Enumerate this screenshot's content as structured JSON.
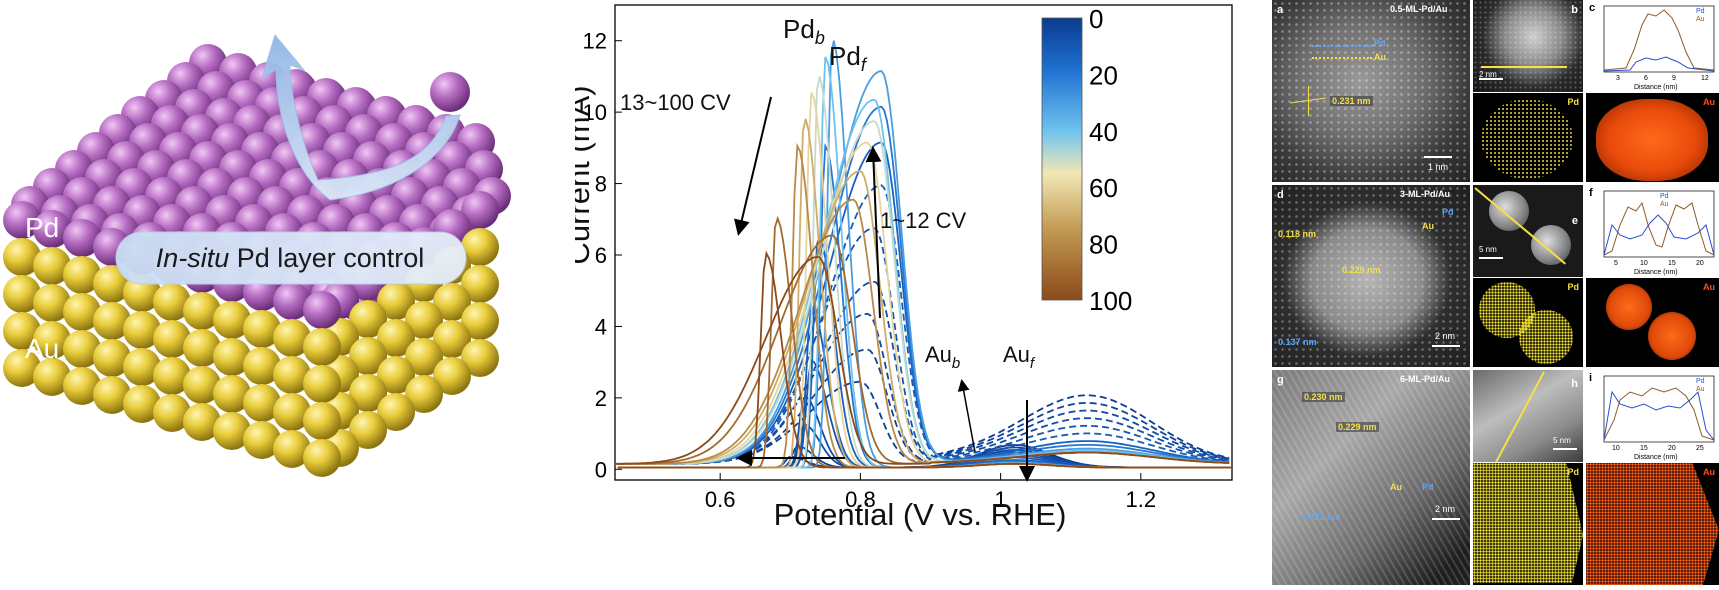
{
  "illustration": {
    "pd_label": "Pd",
    "au_label": "Au",
    "caption_italic": "In-situ",
    "caption_rest": " Pd layer control",
    "colors": {
      "pd": "#b86fc4",
      "au": "#e8cc3a",
      "arrow": "#a9c8ea"
    }
  },
  "chart_data": {
    "type": "line",
    "xlabel": "Potential (V vs. RHE)",
    "ylabel": "Current (mA)",
    "xlim": [
      0.45,
      1.33
    ],
    "ylim": [
      -0.3,
      13
    ],
    "xticks": [
      0.6,
      0.8,
      1.0,
      1.2
    ],
    "xtick_labels": [
      "0.6",
      "0.8",
      "1",
      "1.2"
    ],
    "yticks": [
      0,
      2,
      4,
      6,
      8,
      10,
      12
    ],
    "annotations": {
      "pd_b": "Pd",
      "pd_b_sub": "b",
      "pd_f": "Pd",
      "pd_f_sub": "f",
      "au_b": "Au",
      "au_b_sub": "b",
      "au_f": "Au",
      "au_f_sub": "f",
      "cv_late": "13~100 CV",
      "cv_early": "1~12 CV"
    },
    "colorbar": {
      "min": 0,
      "max": 100,
      "ticks": [
        "0",
        "20",
        "40",
        "60",
        "80",
        "100"
      ]
    },
    "series_params": [
      {
        "cycle": 1,
        "pdf_peak": 0.8,
        "pdf_h": 2.3,
        "pdb_peak": 0.7,
        "pdb_h": 0.3,
        "auf_h": 1.8
      },
      {
        "cycle": 3,
        "pdf_peak": 0.81,
        "pdf_h": 3.2,
        "pdb_peak": 0.71,
        "pdb_h": 0.6,
        "auf_h": 1.6
      },
      {
        "cycle": 5,
        "pdf_peak": 0.81,
        "pdf_h": 4.2,
        "pdb_peak": 0.72,
        "pdb_h": 1.2,
        "auf_h": 1.4
      },
      {
        "cycle": 7,
        "pdf_peak": 0.82,
        "pdf_h": 5.1,
        "pdb_peak": 0.72,
        "pdb_h": 2.0,
        "auf_h": 1.2
      },
      {
        "cycle": 9,
        "pdf_peak": 0.82,
        "pdf_h": 6.6,
        "pdb_peak": 0.73,
        "pdb_h": 3.0,
        "auf_h": 1.0
      },
      {
        "cycle": 11,
        "pdf_peak": 0.83,
        "pdf_h": 7.8,
        "pdb_peak": 0.73,
        "pdb_h": 4.5,
        "auf_h": 0.8
      },
      {
        "cycle": 13,
        "pdf_peak": 0.83,
        "pdf_h": 9.0,
        "pdb_peak": 0.74,
        "pdb_h": 6.5,
        "auf_h": 0.6
      },
      {
        "cycle": 20,
        "pdf_peak": 0.83,
        "pdf_h": 10.0,
        "pdb_peak": 0.75,
        "pdb_h": 9.0,
        "auf_h": 0.5
      },
      {
        "cycle": 30,
        "pdf_peak": 0.83,
        "pdf_h": 11.0,
        "pdb_peak": 0.76,
        "pdb_h": 12.0,
        "auf_h": 0.4
      },
      {
        "cycle": 40,
        "pdf_peak": 0.82,
        "pdf_h": 10.2,
        "pdb_peak": 0.75,
        "pdb_h": 11.5,
        "auf_h": 0.35
      },
      {
        "cycle": 50,
        "pdf_peak": 0.82,
        "pdf_h": 9.6,
        "pdb_peak": 0.74,
        "pdb_h": 11.0,
        "auf_h": 0.3
      },
      {
        "cycle": 60,
        "pdf_peak": 0.81,
        "pdf_h": 9.0,
        "pdb_peak": 0.73,
        "pdb_h": 10.5,
        "auf_h": 0.3
      },
      {
        "cycle": 70,
        "pdf_peak": 0.8,
        "pdf_h": 8.2,
        "pdb_peak": 0.72,
        "pdb_h": 9.8,
        "auf_h": 0.3
      },
      {
        "cycle": 80,
        "pdf_peak": 0.79,
        "pdf_h": 7.4,
        "pdb_peak": 0.71,
        "pdb_h": 9.0,
        "auf_h": 0.3
      },
      {
        "cycle": 90,
        "pdf_peak": 0.76,
        "pdf_h": 6.4,
        "pdb_peak": 0.68,
        "pdb_h": 7.0,
        "auf_h": 0.3
      },
      {
        "cycle": 100,
        "pdf_peak": 0.74,
        "pdf_h": 5.8,
        "pdb_peak": 0.665,
        "pdb_h": 6.0,
        "auf_h": 0.3
      }
    ]
  },
  "micrographs": {
    "row1": {
      "a_letter": "a",
      "b_letter": "b",
      "c_letter": "c",
      "title": "0.5-ML-Pd/Au",
      "pd_tag": "Pd",
      "au_tag": "Au",
      "spacing": "0.231 nm",
      "scale_main": "1 nm",
      "scale_small": "2 nm",
      "map_pd": "Pd",
      "map_au": "Au",
      "plot": {
        "xlabel": "Distance (nm)",
        "xticks": [
          "3",
          "6",
          "9",
          "12"
        ],
        "legend": [
          "Pd",
          "Au"
        ]
      }
    },
    "row2": {
      "d_letter": "d",
      "e_letter": "e",
      "f_letter": "f",
      "title": "3-ML-Pd/Au",
      "spacing_1": "0.118 nm",
      "spacing_2": "0.229 nm",
      "spacing_3": "0.137 nm",
      "pd_tag": "Pd",
      "au_tag": "Au",
      "scale_main": "2 nm",
      "scale_small": "5 nm",
      "map_pd": "Pd",
      "map_au": "Au",
      "plot": {
        "xlabel": "Distance (nm)",
        "xticks": [
          "5",
          "10",
          "15",
          "20"
        ],
        "legend": [
          "Pd",
          "Au"
        ]
      }
    },
    "row3": {
      "g_letter": "g",
      "h_letter": "h",
      "i_letter": "i",
      "title": "6-ML-Pd/Au",
      "spacing_1": "0.230 nm",
      "spacing_2": "0.229 nm",
      "spacing_3": "0.222 nm",
      "pd_tag": "Pd",
      "au_tag": "Au",
      "scale_main": "2 nm",
      "scale_small": "5 nm",
      "map_pd": "Pd",
      "map_au": "Au",
      "plot": {
        "xlabel": "Distance (nm)",
        "xticks": [
          "10",
          "15",
          "20",
          "25"
        ],
        "legend": [
          "Pd",
          "Au"
        ]
      }
    }
  }
}
